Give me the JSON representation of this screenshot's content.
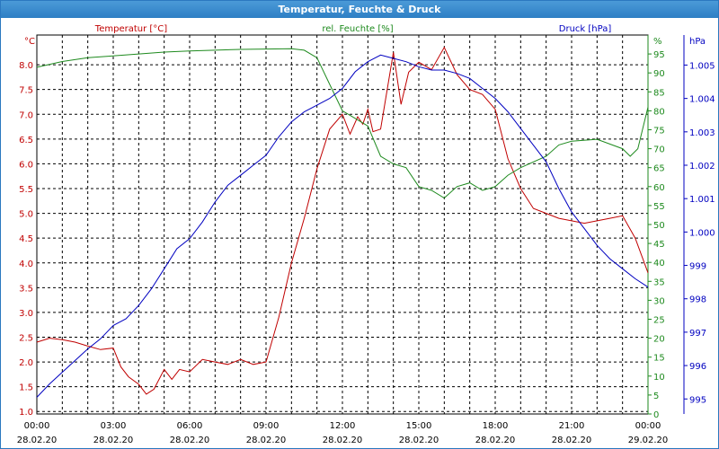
{
  "window": {
    "title": "Temperatur, Feuchte & Druck"
  },
  "colors": {
    "temperature": "#c00000",
    "humidity": "#1e8a1e",
    "pressure": "#0000c0",
    "grid": "#000000",
    "titlebar": "#3a8ad0"
  },
  "chart_data": {
    "type": "line",
    "title": "Temperatur, Feuchte & Druck",
    "grid": true,
    "x_range": [
      "00:00 28.02.20",
      "00:00 29.02.20"
    ],
    "x_ticks": [
      {
        "time": "00:00",
        "date": "28.02.20"
      },
      {
        "time": "03:00",
        "date": "28.02.20"
      },
      {
        "time": "06:00",
        "date": "28.02.20"
      },
      {
        "time": "09:00",
        "date": "28.02.20"
      },
      {
        "time": "12:00",
        "date": "28.02.20"
      },
      {
        "time": "15:00",
        "date": "28.02.20"
      },
      {
        "time": "18:00",
        "date": "28.02.20"
      },
      {
        "time": "21:00",
        "date": "28.02.20"
      },
      {
        "time": "00:00",
        "date": "29.02.20"
      }
    ],
    "axes": {
      "temperature": {
        "label": "Temperatur [°C]",
        "unit": "°C",
        "range": [
          0.95,
          8.6
        ],
        "ticks": [
          "1.0",
          "1.5",
          "2.0",
          "2.5",
          "3.0",
          "3.5",
          "4.0",
          "4.5",
          "5.0",
          "5.5",
          "6.0",
          "6.5",
          "7.0",
          "7.5",
          "8.0"
        ]
      },
      "humidity": {
        "label": "rel. Feuchte [%]",
        "unit": "%",
        "range": [
          0,
          100
        ],
        "ticks": [
          "0",
          "5",
          "10",
          "15",
          "20",
          "25",
          "30",
          "35",
          "40",
          "45",
          "50",
          "55",
          "60",
          "65",
          "70",
          "75",
          "80",
          "85",
          "90",
          "95"
        ]
      },
      "pressure": {
        "label": "Druck [hPa]",
        "unit": "hPa",
        "range": [
          994.55,
          1005.9
        ],
        "ticks": [
          "995",
          "996",
          "997",
          "998",
          "999",
          "1.000",
          "1.001",
          "1.002",
          "1.003",
          "1.004",
          "1.005"
        ]
      }
    },
    "series": [
      {
        "name": "Temperatur [°C]",
        "axis": "temperature",
        "color": "#c00000",
        "points": [
          [
            0,
            2.4
          ],
          [
            0.5,
            2.48
          ],
          [
            1,
            2.45
          ],
          [
            1.5,
            2.4
          ],
          [
            2,
            2.32
          ],
          [
            2.5,
            2.25
          ],
          [
            3,
            2.28
          ],
          [
            3.3,
            1.9
          ],
          [
            3.6,
            1.7
          ],
          [
            4,
            1.55
          ],
          [
            4.3,
            1.35
          ],
          [
            4.6,
            1.45
          ],
          [
            5,
            1.85
          ],
          [
            5.3,
            1.65
          ],
          [
            5.6,
            1.85
          ],
          [
            6,
            1.8
          ],
          [
            6.5,
            2.05
          ],
          [
            7,
            2.0
          ],
          [
            7.5,
            1.95
          ],
          [
            8,
            2.05
          ],
          [
            8.5,
            1.95
          ],
          [
            9,
            2.0
          ],
          [
            9.5,
            2.9
          ],
          [
            10,
            4.0
          ],
          [
            10.5,
            4.9
          ],
          [
            11,
            5.9
          ],
          [
            11.5,
            6.7
          ],
          [
            12,
            7.0
          ],
          [
            12.3,
            6.6
          ],
          [
            12.6,
            6.95
          ],
          [
            12.8,
            6.8
          ],
          [
            13,
            7.1
          ],
          [
            13.2,
            6.65
          ],
          [
            13.5,
            6.7
          ],
          [
            14,
            8.25
          ],
          [
            14.3,
            7.2
          ],
          [
            14.6,
            7.85
          ],
          [
            15,
            8.05
          ],
          [
            15.5,
            7.9
          ],
          [
            16,
            8.35
          ],
          [
            16.5,
            7.8
          ],
          [
            17,
            7.5
          ],
          [
            17.5,
            7.4
          ],
          [
            18,
            7.1
          ],
          [
            18.5,
            6.1
          ],
          [
            19,
            5.5
          ],
          [
            19.5,
            5.1
          ],
          [
            20,
            5.0
          ],
          [
            20.5,
            4.9
          ],
          [
            21,
            4.85
          ],
          [
            21.5,
            4.8
          ],
          [
            22,
            4.85
          ],
          [
            22.5,
            4.9
          ],
          [
            23,
            4.95
          ],
          [
            23.5,
            4.5
          ],
          [
            24,
            3.8
          ]
        ]
      },
      {
        "name": "rel. Feuchte [%]",
        "axis": "humidity",
        "color": "#1e8a1e",
        "points": [
          [
            0,
            91.5
          ],
          [
            1,
            93
          ],
          [
            2,
            94
          ],
          [
            3,
            94.5
          ],
          [
            4,
            95
          ],
          [
            5,
            95.5
          ],
          [
            6,
            95.8
          ],
          [
            7,
            96
          ],
          [
            8,
            96.2
          ],
          [
            9,
            96.3
          ],
          [
            10,
            96.4
          ],
          [
            10.5,
            96
          ],
          [
            11,
            94
          ],
          [
            11.5,
            87
          ],
          [
            12,
            80
          ],
          [
            12.5,
            78
          ],
          [
            13,
            76
          ],
          [
            13.5,
            68
          ],
          [
            14,
            66
          ],
          [
            14.5,
            65
          ],
          [
            15,
            60
          ],
          [
            15.5,
            59
          ],
          [
            16,
            57
          ],
          [
            16.5,
            60
          ],
          [
            17,
            61
          ],
          [
            17.5,
            59
          ],
          [
            18,
            60
          ],
          [
            18.5,
            63
          ],
          [
            19,
            65
          ],
          [
            20,
            68
          ],
          [
            20.5,
            71
          ],
          [
            21,
            72
          ],
          [
            22,
            72.5
          ],
          [
            23,
            70
          ],
          [
            23.3,
            68
          ],
          [
            23.6,
            70
          ],
          [
            24,
            81
          ]
        ]
      },
      {
        "name": "Druck [hPa]",
        "axis": "pressure",
        "color": "#0000c0",
        "points": [
          [
            0,
            995.05
          ],
          [
            0.5,
            995.45
          ],
          [
            1,
            995.8
          ],
          [
            1.5,
            996.15
          ],
          [
            2,
            996.5
          ],
          [
            2.5,
            996.8
          ],
          [
            3,
            997.2
          ],
          [
            3.5,
            997.4
          ],
          [
            4,
            997.8
          ],
          [
            4.5,
            998.3
          ],
          [
            5,
            998.9
          ],
          [
            5.5,
            999.5
          ],
          [
            6,
            999.8
          ],
          [
            6.5,
            1000.3
          ],
          [
            7,
            1000.9
          ],
          [
            7.5,
            1001.4
          ],
          [
            8,
            1001.7
          ],
          [
            8.5,
            1002.0
          ],
          [
            9,
            1002.3
          ],
          [
            9.5,
            1002.85
          ],
          [
            10,
            1003.3
          ],
          [
            10.5,
            1003.6
          ],
          [
            11,
            1003.8
          ],
          [
            11.5,
            1004.0
          ],
          [
            12,
            1004.3
          ],
          [
            12.5,
            1004.8
          ],
          [
            13,
            1005.1
          ],
          [
            13.5,
            1005.3
          ],
          [
            14,
            1005.2
          ],
          [
            14.5,
            1005.1
          ],
          [
            15,
            1004.95
          ],
          [
            15.5,
            1004.85
          ],
          [
            16,
            1004.85
          ],
          [
            16.5,
            1004.75
          ],
          [
            17,
            1004.6
          ],
          [
            17.5,
            1004.3
          ],
          [
            18,
            1004.0
          ],
          [
            18.5,
            1003.6
          ],
          [
            19,
            1003.1
          ],
          [
            19.5,
            1002.6
          ],
          [
            20,
            1002.1
          ],
          [
            20.5,
            1001.3
          ],
          [
            21,
            1000.6
          ],
          [
            21.5,
            1000.1
          ],
          [
            22,
            999.6
          ],
          [
            22.5,
            999.2
          ],
          [
            23,
            998.9
          ],
          [
            23.5,
            998.6
          ],
          [
            24,
            998.35
          ]
        ]
      }
    ]
  }
}
